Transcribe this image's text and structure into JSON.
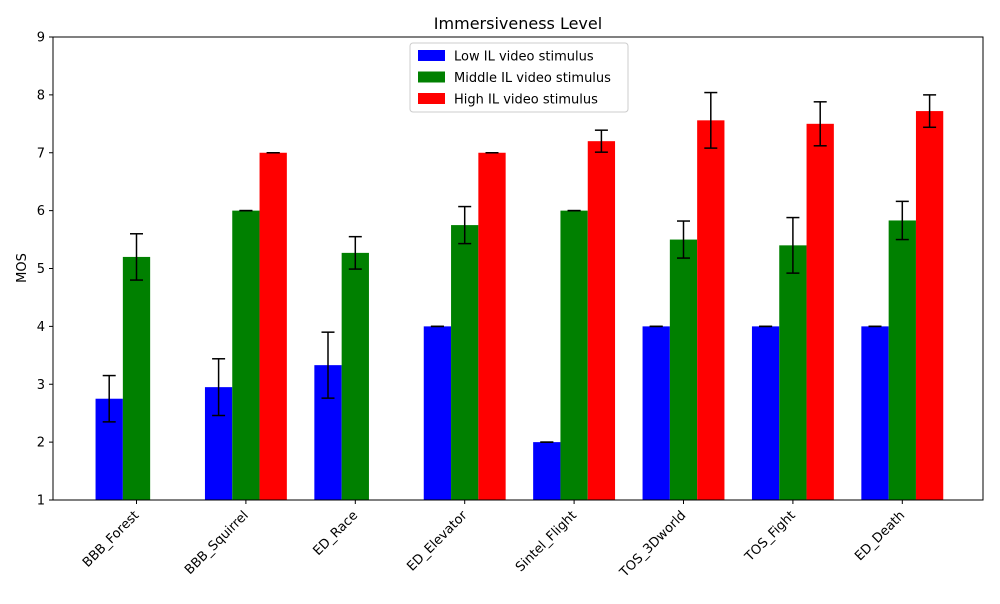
{
  "chart_data": {
    "type": "bar",
    "title": "Immersiveness Level",
    "xlabel": "",
    "ylabel": "MOS",
    "ylim": [
      1,
      9
    ],
    "yticks": [
      1,
      2,
      3,
      4,
      5,
      6,
      7,
      8,
      9
    ],
    "grid": false,
    "legend_position": "top-center",
    "categories": [
      "BBB_Forest",
      "BBB_Squirrel",
      "ED_Race",
      "ED_Elevator",
      "Sintel_Flight",
      "TOS_3Dworld",
      "TOS_Fight",
      "ED_Death"
    ],
    "series": [
      {
        "name": "Low IL video stimulus",
        "color": "#0000ff",
        "values": [
          2.75,
          2.95,
          3.33,
          4.0,
          2.0,
          4.0,
          4.0,
          4.0
        ],
        "errors": [
          0.4,
          0.49,
          0.57,
          0.0,
          0.0,
          0.0,
          0.0,
          0.0
        ]
      },
      {
        "name": "Middle IL video stimulus",
        "color": "#008000",
        "values": [
          5.2,
          6.0,
          5.27,
          5.75,
          6.0,
          5.5,
          5.4,
          5.83
        ],
        "errors": [
          0.4,
          0.0,
          0.28,
          0.32,
          0.0,
          0.32,
          0.48,
          0.33
        ]
      },
      {
        "name": "High IL video stimulus",
        "color": "#ff0000",
        "values": [
          null,
          7.0,
          null,
          7.0,
          7.2,
          7.56,
          7.5,
          7.72
        ],
        "errors": [
          null,
          0.0,
          null,
          0.0,
          0.19,
          0.48,
          0.38,
          0.28
        ]
      }
    ]
  }
}
